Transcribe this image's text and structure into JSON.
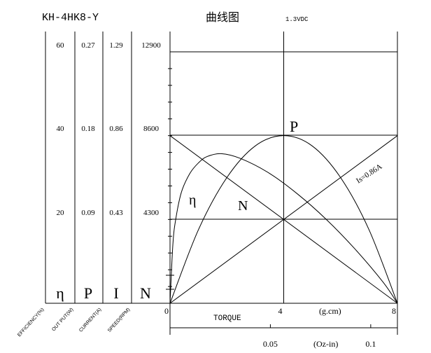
{
  "header": {
    "model": "KH-4HK8-Y",
    "title": "曲线图",
    "voltage": "1.3VDC"
  },
  "chart_data": {
    "type": "line",
    "torque_ticks": [
      {
        "value": 0,
        "label": "0"
      },
      {
        "value": 4,
        "label": "4"
      },
      {
        "value": 8,
        "label": "8"
      }
    ],
    "torque_unit": "(g.cm)",
    "torque_label": "TORQUE",
    "ozin_ticks": [
      {
        "value": 0.05,
        "label": "0.05"
      },
      {
        "value": 0.1,
        "label": "0.1"
      }
    ],
    "ozin_unit": "(Oz-in)",
    "xlim": [
      0,
      8
    ],
    "ylim_fraction": [
      0,
      1
    ],
    "left_scales": [
      {
        "symbol": "η",
        "name": "EFFICIENCY(%)",
        "ticks": [
          "20",
          "40",
          "60"
        ]
      },
      {
        "symbol": "P",
        "name": "OUT PUT(W)",
        "ticks": [
          "0.09",
          "0.18",
          "0.27"
        ]
      },
      {
        "symbol": "I",
        "name": "CURRENT(A)",
        "ticks": [
          "0.43",
          "0.86",
          "1.29"
        ]
      },
      {
        "symbol": "N",
        "name": "SPEED(RPM)",
        "ticks": [
          "4300",
          "8600",
          "12900"
        ]
      }
    ],
    "scale_max": {
      "efficiency": 60,
      "output": 0.27,
      "current": 1.29,
      "speed": 12900
    },
    "series": [
      {
        "key": "speed",
        "label": "N",
        "x": [
          0,
          8
        ],
        "y": [
          8600,
          0
        ]
      },
      {
        "key": "current",
        "label": "Is=0.86A",
        "x": [
          0,
          8
        ],
        "y": [
          0,
          0.86
        ]
      },
      {
        "key": "output",
        "label": "P",
        "x": [
          0,
          1,
          2,
          3,
          4,
          5,
          6,
          7,
          8
        ],
        "y": [
          0,
          0.079,
          0.135,
          0.169,
          0.18,
          0.169,
          0.135,
          0.079,
          0
        ]
      },
      {
        "key": "efficiency",
        "label": "η",
        "x": [
          0,
          0.1,
          0.2,
          0.4,
          0.7,
          1.0,
          1.3,
          1.8,
          2.5,
          3.5,
          4.5,
          5.5,
          6.5,
          7.5,
          8
        ],
        "y": [
          0,
          14,
          20,
          26.5,
          31,
          33.5,
          35,
          35.7,
          34.5,
          31,
          26,
          20,
          13,
          5,
          0
        ]
      }
    ],
    "grid": true
  }
}
